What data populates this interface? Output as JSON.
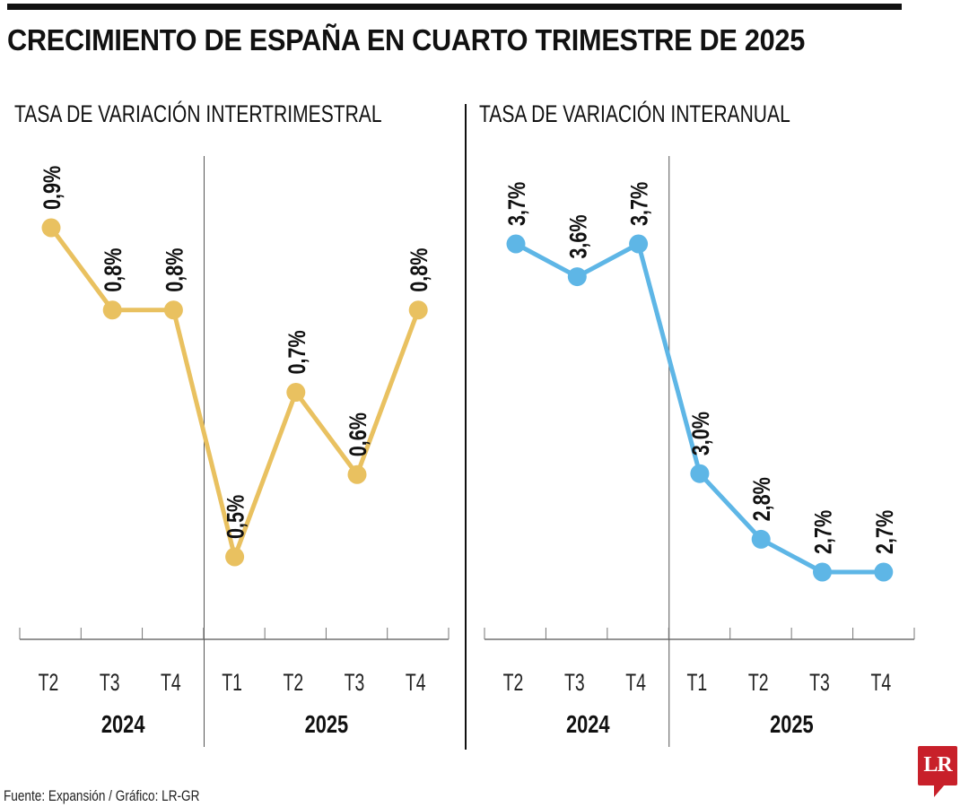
{
  "header": {
    "title": "CRECIMIENTO DE ESPAÑA EN CUARTO TRIMESTRE DE 2025"
  },
  "footer": {
    "source": "Fuente: Expansión / Gráfico: LR-GR",
    "logo_text": "LR",
    "logo_color": "#c8202a"
  },
  "chart_data": [
    {
      "type": "line",
      "title": "TASA DE VARIACIÓN INTERTRIMESTRAL",
      "categories": [
        "T2",
        "T3",
        "T4",
        "T1",
        "T2",
        "T3",
        "T4"
      ],
      "year_groups": [
        {
          "label": "2024",
          "quarters": [
            "T2",
            "T3",
            "T4"
          ]
        },
        {
          "label": "2025",
          "quarters": [
            "T1",
            "T2",
            "T3",
            "T4"
          ]
        }
      ],
      "values": [
        0.9,
        0.8,
        0.8,
        0.5,
        0.7,
        0.6,
        0.8
      ],
      "labels": [
        "0,9%",
        "0,8%",
        "0,8%",
        "0,5%",
        "0,7%",
        "0,6%",
        "0,8%"
      ],
      "color": "#e9c160",
      "xlabel": "",
      "ylabel": "",
      "ylim": [
        0.5,
        0.9
      ],
      "grid": false,
      "legend": "none"
    },
    {
      "type": "line",
      "title": "TASA DE VARIACIÓN INTERANUAL",
      "categories": [
        "T2",
        "T3",
        "T4",
        "T1",
        "T2",
        "T3",
        "T4"
      ],
      "year_groups": [
        {
          "label": "2024",
          "quarters": [
            "T2",
            "T3",
            "T4"
          ]
        },
        {
          "label": "2025",
          "quarters": [
            "T1",
            "T2",
            "T3",
            "T4"
          ]
        }
      ],
      "values": [
        3.7,
        3.6,
        3.7,
        3.0,
        2.8,
        2.7,
        2.7
      ],
      "labels": [
        "3,7%",
        "3,6%",
        "3,7%",
        "3,0%",
        "2,8%",
        "2,7%",
        "2,7%"
      ],
      "color": "#5eb6e6",
      "xlabel": "",
      "ylabel": "",
      "ylim": [
        2.7,
        3.7
      ],
      "grid": false,
      "legend": "none"
    }
  ]
}
